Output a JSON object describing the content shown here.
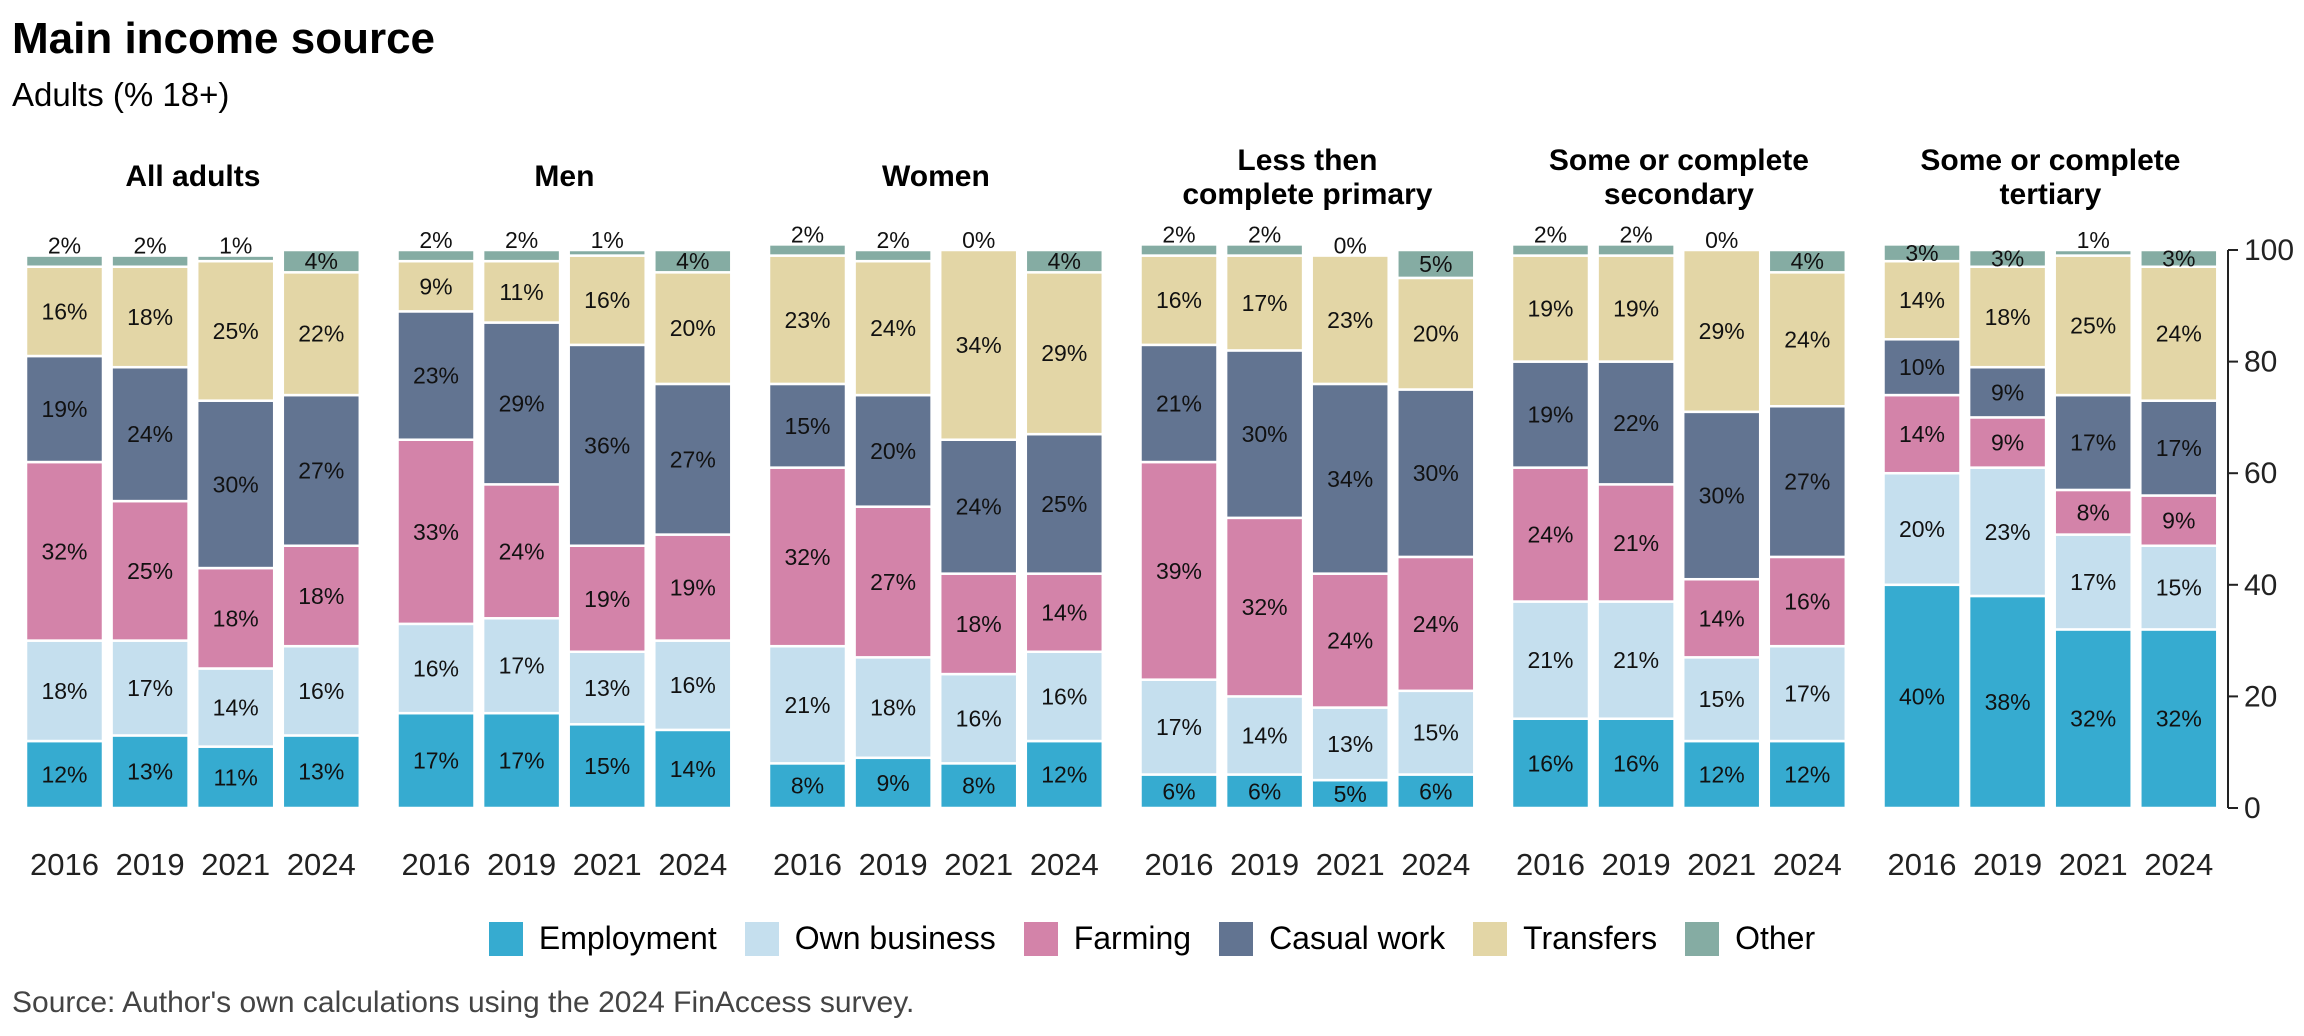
{
  "chart_data": {
    "type": "bar",
    "stacked": true,
    "title": "Main income source",
    "subtitle": "Adults (% 18+)",
    "source": "Source: Author's own calculations using the 2024 FinAccess survey.",
    "ylim": [
      0,
      100
    ],
    "yticks": [
      0,
      20,
      40,
      60,
      80,
      100
    ],
    "y_axis_side": "right",
    "grid": false,
    "legend_position": "bottom",
    "categories": [
      "2016",
      "2019",
      "2021",
      "2024"
    ],
    "series": [
      {
        "name": "Employment",
        "color": "#36abd0"
      },
      {
        "name": "Own business",
        "color": "#c5dfee"
      },
      {
        "name": "Farming",
        "color": "#d383a9"
      },
      {
        "name": "Casual work",
        "color": "#627491"
      },
      {
        "name": "Transfers",
        "color": "#e3d6a6"
      },
      {
        "name": "Other",
        "color": "#85aca3"
      }
    ],
    "panels": [
      {
        "title": "All adults",
        "values": [
          [
            12,
            18,
            32,
            19,
            16,
            2
          ],
          [
            13,
            17,
            25,
            24,
            18,
            2
          ],
          [
            11,
            14,
            18,
            30,
            25,
            1
          ],
          [
            13,
            16,
            18,
            27,
            22,
            4
          ]
        ]
      },
      {
        "title": "Men",
        "values": [
          [
            17,
            16,
            33,
            23,
            9,
            2
          ],
          [
            17,
            17,
            24,
            29,
            11,
            2
          ],
          [
            15,
            13,
            19,
            36,
            16,
            1
          ],
          [
            14,
            16,
            19,
            27,
            20,
            4
          ]
        ]
      },
      {
        "title": "Women",
        "values": [
          [
            8,
            21,
            32,
            15,
            23,
            2
          ],
          [
            9,
            18,
            27,
            20,
            24,
            2
          ],
          [
            8,
            16,
            18,
            24,
            34,
            0
          ],
          [
            12,
            16,
            14,
            25,
            29,
            4
          ]
        ]
      },
      {
        "title": "Less then complete primary",
        "values": [
          [
            6,
            17,
            39,
            21,
            16,
            2
          ],
          [
            6,
            14,
            32,
            30,
            17,
            2
          ],
          [
            5,
            13,
            24,
            34,
            23,
            0
          ],
          [
            6,
            15,
            24,
            30,
            20,
            5
          ]
        ]
      },
      {
        "title": "Some or complete secondary",
        "values": [
          [
            16,
            21,
            24,
            19,
            19,
            2
          ],
          [
            16,
            21,
            21,
            22,
            19,
            2
          ],
          [
            12,
            15,
            14,
            30,
            29,
            0
          ],
          [
            12,
            17,
            16,
            27,
            24,
            4
          ]
        ]
      },
      {
        "title": "Some or complete tertiary",
        "values": [
          [
            40,
            20,
            14,
            10,
            14,
            3
          ],
          [
            38,
            23,
            9,
            9,
            18,
            3
          ],
          [
            32,
            17,
            8,
            17,
            25,
            1
          ],
          [
            32,
            15,
            9,
            17,
            24,
            3
          ]
        ]
      }
    ]
  }
}
